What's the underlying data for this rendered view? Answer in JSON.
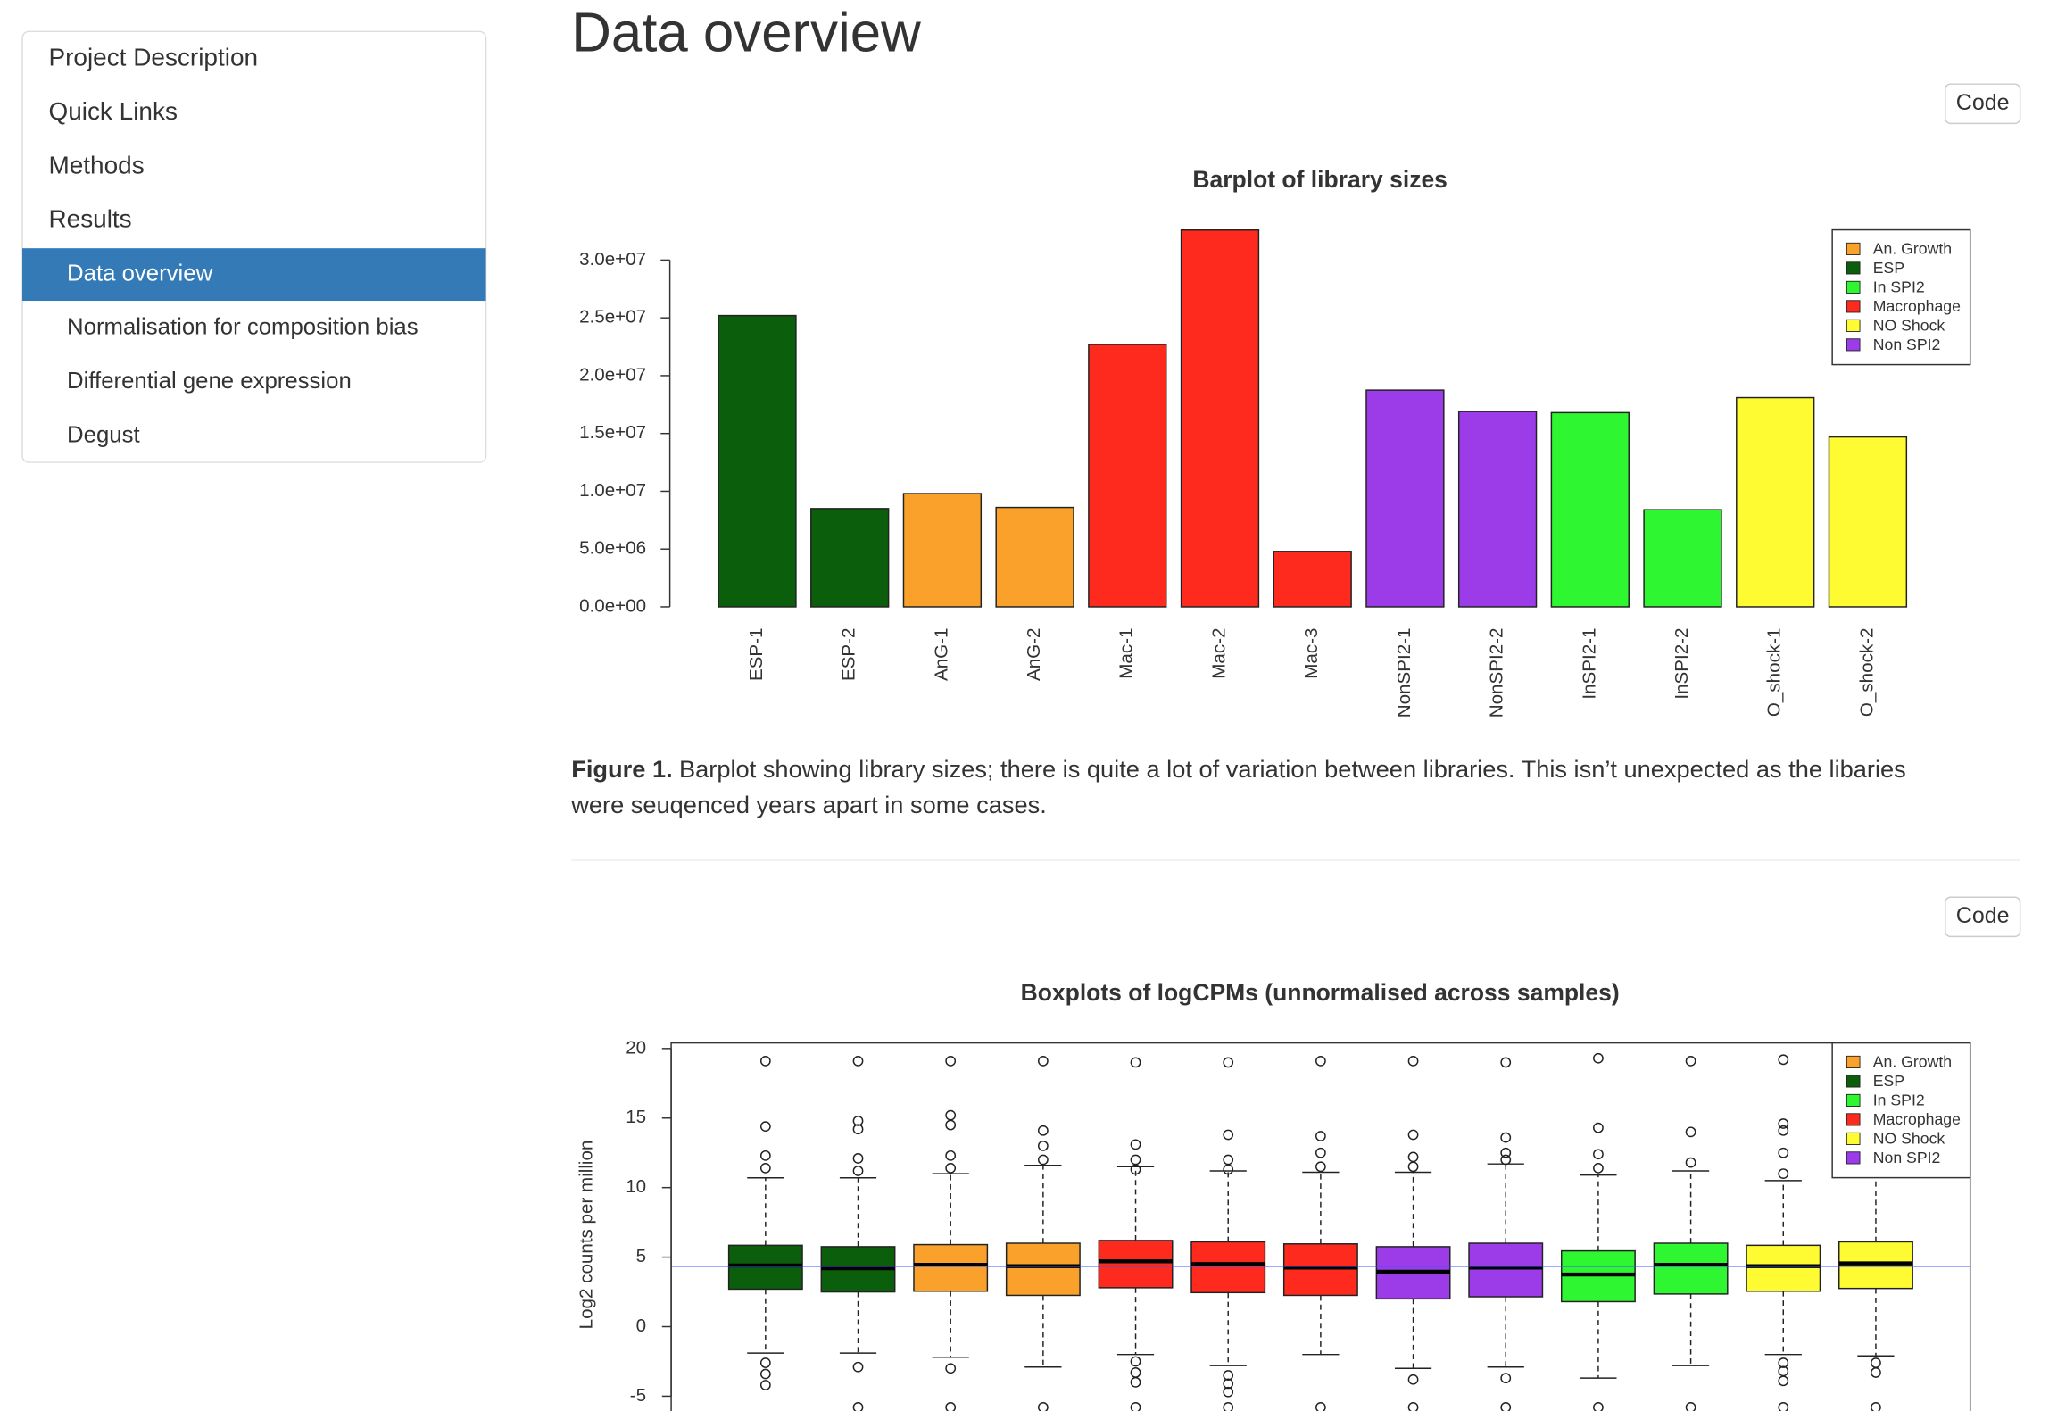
{
  "sidebar": {
    "items": [
      {
        "label": "Project Description"
      },
      {
        "label": "Quick Links"
      },
      {
        "label": "Methods"
      },
      {
        "label": "Results",
        "children": [
          {
            "label": "Data overview"
          },
          {
            "label": "Normalisation for composition bias"
          },
          {
            "label": "Differential gene expression"
          },
          {
            "label": "Degust"
          }
        ]
      }
    ],
    "active_child": 0
  },
  "heading": "Data overview",
  "code_buttons": [
    "Code",
    "Code"
  ],
  "caption": {
    "label": "Figure 1.",
    "lines": [
      "Barplot showing library sizes; there is quite a lot of variation between libraries. This isn’t unexpected as the libaries",
      "were seuqenced years apart in some cases."
    ]
  },
  "chart_data": [
    {
      "type": "bar",
      "title": "Barplot of library sizes",
      "categories": [
        "ESP-1",
        "ESP-2",
        "AnG-1",
        "AnG-2",
        "Mac-1",
        "Mac-2",
        "Mac-3",
        "NonSPI2-1",
        "NonSPI2-2",
        "InSPI2-1",
        "InSPI2-2",
        "O_shock-1",
        "O_shock-2"
      ],
      "values": [
        25200000,
        8500000,
        9800000,
        8600000,
        22700000,
        32600000,
        4800000,
        18750000,
        16900000,
        16800000,
        8400000,
        18100000,
        14700000
      ],
      "colors": [
        "#0b5e0b",
        "#0b5e0b",
        "#f9a12a",
        "#f9a12a",
        "#fe2a1e",
        "#fe2a1e",
        "#fe2a1e",
        "#9c3ce8",
        "#9c3ce8",
        "#2ef731",
        "#2ef731",
        "#fefb33",
        "#fefb33"
      ],
      "ylim": [
        0,
        33000000
      ],
      "yticks": [
        {
          "value": 0,
          "label": "0.0e+00"
        },
        {
          "value": 5000000,
          "label": "5.0e+06"
        },
        {
          "value": 10000000,
          "label": "1.0e+07"
        },
        {
          "value": 15000000,
          "label": "1.5e+07"
        },
        {
          "value": 20000000,
          "label": "2.0e+07"
        },
        {
          "value": 25000000,
          "label": "2.5e+07"
        },
        {
          "value": 30000000,
          "label": "3.0e+07"
        }
      ],
      "legend": {
        "position": "top-right",
        "items": [
          {
            "name": "An. Growth",
            "color": "#f9a12a"
          },
          {
            "name": "ESP",
            "color": "#0b5e0b"
          },
          {
            "name": "In SPI2",
            "color": "#2ef731"
          },
          {
            "name": "Macrophage",
            "color": "#fe2a1e"
          },
          {
            "name": "NO Shock",
            "color": "#fefb33"
          },
          {
            "name": "Non SPI2",
            "color": "#9c3ce8"
          }
        ]
      }
    },
    {
      "type": "box",
      "title": "Boxplots of logCPMs (unnormalised across samples)",
      "y_label": "Log2 counts per million",
      "boxes": [
        {
          "color": "#0b5e0b",
          "whislo": -1.9,
          "q1": 2.7,
          "med": 4.4,
          "q3": 5.85,
          "whishi": 10.7,
          "fliers": [
            19.1,
            14.4,
            12.3,
            11.4,
            -2.6,
            -3.4,
            -4.2
          ]
        },
        {
          "color": "#0b5e0b",
          "whislo": -1.9,
          "q1": 2.5,
          "med": 4.2,
          "q3": 5.75,
          "whishi": 10.7,
          "fliers": [
            19.1,
            14.8,
            14.2,
            12.1,
            11.2,
            -2.9,
            -5.8
          ]
        },
        {
          "color": "#f9a12a",
          "whislo": -2.2,
          "q1": 2.55,
          "med": 4.45,
          "q3": 5.9,
          "whishi": 11.0,
          "fliers": [
            19.1,
            15.2,
            14.5,
            12.3,
            11.4,
            -3.0,
            -5.8
          ]
        },
        {
          "color": "#f9a12a",
          "whislo": -2.9,
          "q1": 2.25,
          "med": 4.35,
          "q3": 6.0,
          "whishi": 11.6,
          "fliers": [
            19.1,
            14.1,
            13.0,
            12.0,
            -5.8
          ]
        },
        {
          "color": "#fe2a1e",
          "whislo": -2.0,
          "q1": 2.8,
          "med": 4.7,
          "q3": 6.2,
          "whishi": 11.5,
          "fliers": [
            19.0,
            13.1,
            12.0,
            11.3,
            -2.5,
            -3.3,
            -4.0,
            -5.8
          ]
        },
        {
          "color": "#fe2a1e",
          "whislo": -2.8,
          "q1": 2.45,
          "med": 4.5,
          "q3": 6.1,
          "whishi": 11.2,
          "fliers": [
            19.0,
            13.8,
            12.0,
            11.3,
            -3.5,
            -4.1,
            -4.7,
            -5.8
          ]
        },
        {
          "color": "#fe2a1e",
          "whislo": -2.0,
          "q1": 2.25,
          "med": 4.25,
          "q3": 5.95,
          "whishi": 11.1,
          "fliers": [
            19.1,
            13.7,
            12.5,
            11.5,
            -5.8
          ]
        },
        {
          "color": "#9c3ce8",
          "whislo": -3.0,
          "q1": 2.0,
          "med": 3.95,
          "q3": 5.75,
          "whishi": 11.1,
          "fliers": [
            19.1,
            13.8,
            12.2,
            11.5,
            -3.8,
            -5.8
          ]
        },
        {
          "color": "#9c3ce8",
          "whislo": -2.9,
          "q1": 2.15,
          "med": 4.25,
          "q3": 6.0,
          "whishi": 11.7,
          "fliers": [
            19.0,
            13.6,
            12.5,
            12.0,
            -3.7,
            -5.8
          ]
        },
        {
          "color": "#2ef731",
          "whislo": -3.7,
          "q1": 1.8,
          "med": 3.75,
          "q3": 5.45,
          "whishi": 10.9,
          "fliers": [
            19.3,
            14.3,
            12.4,
            11.4,
            -5.8
          ]
        },
        {
          "color": "#2ef731",
          "whislo": -2.8,
          "q1": 2.35,
          "med": 4.45,
          "q3": 6.0,
          "whishi": 11.2,
          "fliers": [
            19.1,
            14.0,
            11.8,
            -5.8
          ]
        },
        {
          "color": "#fefb33",
          "whislo": -2.0,
          "q1": 2.55,
          "med": 4.35,
          "q3": 5.85,
          "whishi": 10.5,
          "fliers": [
            19.2,
            14.6,
            14.1,
            12.5,
            11.0,
            -2.6,
            -3.2,
            -3.9,
            -5.8
          ]
        },
        {
          "color": "#fefb33",
          "whislo": -2.1,
          "q1": 2.75,
          "med": 4.55,
          "q3": 6.1,
          "whishi": 11.0,
          "fliers": [
            -2.6,
            -3.3,
            -5.8
          ]
        }
      ],
      "hline": {
        "value": 4.35,
        "color": "#3a55ff"
      },
      "ylim": [
        -7.2,
        20.4
      ],
      "yticks": [
        -5,
        0,
        5,
        10,
        15,
        20
      ],
      "legend": {
        "position": "top-right",
        "items": [
          {
            "name": "An. Growth",
            "color": "#f9a12a"
          },
          {
            "name": "ESP",
            "color": "#0b5e0b"
          },
          {
            "name": "In SPI2",
            "color": "#2ef731"
          },
          {
            "name": "Macrophage",
            "color": "#fe2a1e"
          },
          {
            "name": "NO Shock",
            "color": "#fefb33"
          },
          {
            "name": "Non SPI2",
            "color": "#9c3ce8"
          }
        ]
      }
    }
  ]
}
